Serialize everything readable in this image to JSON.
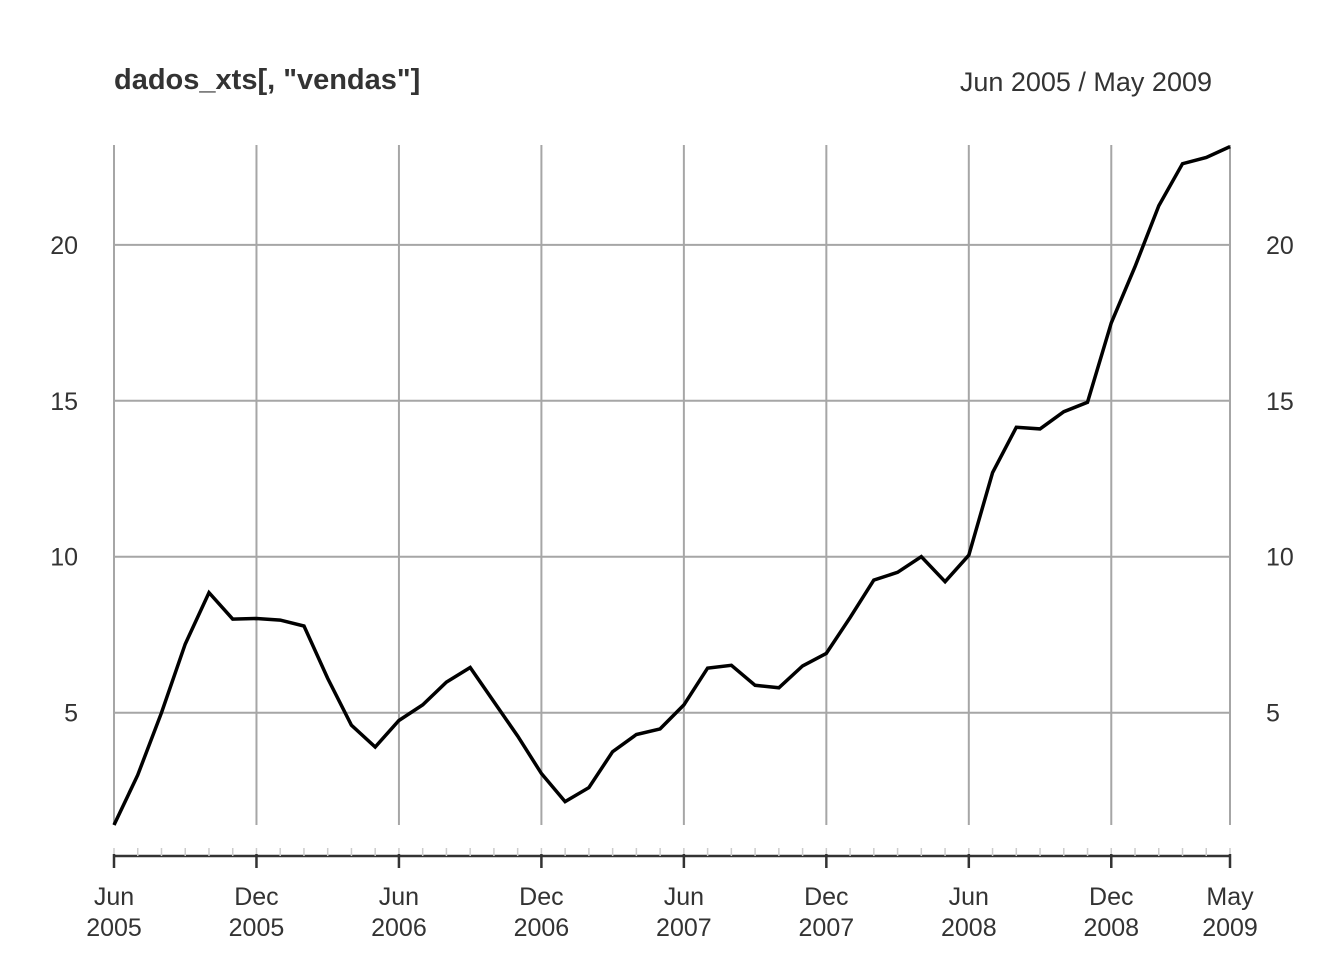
{
  "chart_data": {
    "type": "line",
    "title": "dados_xts[, \"vendas\"]",
    "date_range": "Jun 2005 / May 2009",
    "xlabel": "",
    "ylabel": "",
    "ylim": [
      1.4,
      23.2
    ],
    "yticks": [
      5,
      10,
      15,
      20
    ],
    "grid": true,
    "x_ticks": [
      {
        "date": "2005-06",
        "line1": "Jun",
        "line2": "2005"
      },
      {
        "date": "2005-12",
        "line1": "Dec",
        "line2": "2005"
      },
      {
        "date": "2006-06",
        "line1": "Jun",
        "line2": "2006"
      },
      {
        "date": "2006-12",
        "line1": "Dec",
        "line2": "2006"
      },
      {
        "date": "2007-06",
        "line1": "Jun",
        "line2": "2007"
      },
      {
        "date": "2007-12",
        "line1": "Dec",
        "line2": "2007"
      },
      {
        "date": "2008-06",
        "line1": "Jun",
        "line2": "2008"
      },
      {
        "date": "2008-12",
        "line1": "Dec",
        "line2": "2008"
      },
      {
        "date": "2009-05",
        "line1": "May",
        "line2": "2009"
      }
    ],
    "series": [
      {
        "name": "",
        "color": "#000000",
        "x": [
          "2005-06",
          "2005-07",
          "2005-08",
          "2005-09",
          "2005-10",
          "2005-11",
          "2005-12",
          "2006-01",
          "2006-02",
          "2006-03",
          "2006-04",
          "2006-05",
          "2006-06",
          "2006-07",
          "2006-08",
          "2006-09",
          "2006-10",
          "2006-11",
          "2006-12",
          "2007-01",
          "2007-02",
          "2007-03",
          "2007-04",
          "2007-05",
          "2007-06",
          "2007-07",
          "2007-08",
          "2007-09",
          "2007-10",
          "2007-11",
          "2007-12",
          "2008-01",
          "2008-02",
          "2008-03",
          "2008-04",
          "2008-05",
          "2008-06",
          "2008-07",
          "2008-08",
          "2008-09",
          "2008-10",
          "2008-11",
          "2008-12",
          "2009-01",
          "2009-02",
          "2009-03",
          "2009-04",
          "2009-05"
        ],
        "values": [
          1.4,
          3.0,
          5.0,
          7.2,
          8.85,
          8.0,
          8.02,
          7.97,
          7.78,
          6.1,
          4.6,
          3.9,
          4.75,
          5.25,
          5.98,
          6.45,
          5.35,
          4.25,
          3.05,
          2.15,
          2.6,
          3.75,
          4.3,
          4.48,
          5.25,
          6.43,
          6.52,
          5.88,
          5.8,
          6.5,
          6.9,
          8.05,
          9.25,
          9.5,
          10.0,
          9.2,
          10.05,
          12.7,
          14.15,
          14.1,
          14.65,
          14.95,
          17.5,
          19.3,
          21.25,
          22.6,
          22.8,
          23.15
        ]
      }
    ]
  }
}
